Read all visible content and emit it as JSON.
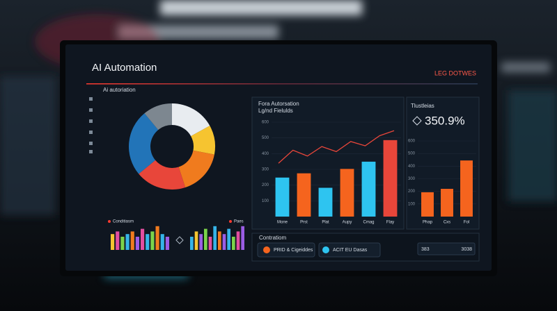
{
  "header": {
    "title": "AI Automation",
    "badge": "LEG DOTWES"
  },
  "subtitle": "Ai autoriation",
  "donut": {
    "values": [
      17,
      11,
      17,
      19,
      25,
      11
    ],
    "colors": [
      "#e8ecf0",
      "#f6c430",
      "#f07b1e",
      "#e8463a",
      "#2274b8",
      "#7d8790"
    ]
  },
  "mini_left": {
    "legend": "Conditiasm",
    "values": [
      6,
      7,
      5,
      6,
      7,
      5,
      8,
      6,
      7,
      9,
      6,
      5
    ],
    "colors": [
      "#f6c430",
      "#e24ea0",
      "#7bd34a",
      "#36b4e8",
      "#f07b1e",
      "#9b5de5",
      "#e24ea0",
      "#36b4e8",
      "#7bd34a",
      "#f07b1e",
      "#36b4e8",
      "#9b5de5"
    ],
    "ylim": [
      0,
      10
    ]
  },
  "mini_right": {
    "legend": "Paes",
    "values": [
      5,
      7,
      6,
      8,
      5,
      9,
      7,
      6,
      8,
      5,
      7,
      9
    ],
    "colors": [
      "#36b4e8",
      "#f6c430",
      "#9b5de5",
      "#7bd34a",
      "#e24ea0",
      "#36b4e8",
      "#f07b1e",
      "#9b5de5",
      "#36b4e8",
      "#7bd34a",
      "#e24ea0",
      "#9b5de5"
    ],
    "ylim": [
      0,
      10
    ]
  },
  "main_chart": {
    "type": "bar",
    "title": "Fora Autorsation",
    "subtitle": "Lg/nd Fielulds",
    "categories": [
      "Mone",
      "Prst",
      "Plat",
      "Aupy",
      "Cmag",
      "Flay"
    ],
    "values": [
      248,
      275,
      183,
      303,
      349,
      486
    ],
    "colors": [
      "#2ec4f0",
      "#f5641e",
      "#2ec4f0",
      "#f5641e",
      "#2ec4f0",
      "#e8463a"
    ],
    "line": [
      339,
      422,
      385,
      445,
      413,
      477,
      450,
      514,
      546
    ],
    "line_color": "#e8463a",
    "ylim": [
      0,
      600
    ],
    "yticks": [
      100,
      200,
      300,
      400,
      500,
      600
    ]
  },
  "side_chart": {
    "type": "bar",
    "title": "Tlustleias",
    "kpi": "350.9%",
    "categories": [
      "Phap",
      "Cxs",
      "Fol"
    ],
    "values": [
      193,
      220,
      445
    ],
    "colors": [
      "#f5641e",
      "#f5641e",
      "#f5641e"
    ],
    "ylim": [
      0,
      600
    ],
    "yticks": [
      100,
      200,
      300,
      400,
      500,
      600
    ]
  },
  "bottom": {
    "title": "Contratiom",
    "button1": "PRID & Cigeiddes",
    "button2": "ACIT EU Dasas",
    "stat_label": "383",
    "stat_value": "3038"
  }
}
